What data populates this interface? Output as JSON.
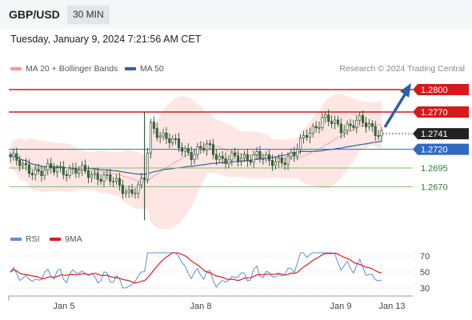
{
  "header": {
    "symbol": "GBP/USD",
    "interval": "30 MIN"
  },
  "datetime": "Tuesday, January 9, 2024 7:21:56 AM CET",
  "copyright": "Research © 2024 Trading Central",
  "legend": {
    "bollinger": "MA 20 + Bollinger Bands",
    "ma50": "MA 50",
    "rsi": "RSI",
    "ma9": "9MA"
  },
  "colors": {
    "resistance": "#d7191c",
    "support": "#7fbf6a",
    "current": "#222222",
    "pivot": "#2f6ac0",
    "candle_up": "#ffffff",
    "candle_down": "#2e7d32",
    "bollinger_fill": "#fde3e1",
    "ma20": "#f3a7a0",
    "ma50": "#3a5d9c",
    "rsi": "#5b8fe0",
    "ma9": "#e21b1b",
    "arrow": "#2b5ea8"
  },
  "chart_data": {
    "type": "candlestick",
    "ylim": [
      1.262,
      1.2815
    ],
    "x_labels": [
      "Jan 5",
      "Jan 8",
      "Jan 9",
      "Jan 13"
    ],
    "price_levels": [
      {
        "label": "1.2800",
        "value": 1.28,
        "kind": "resistance"
      },
      {
        "label": "1.2770",
        "value": 1.277,
        "kind": "resistance"
      },
      {
        "label": "1.2741",
        "value": 1.2741,
        "kind": "current"
      },
      {
        "label": "1.2720",
        "value": 1.272,
        "kind": "pivot"
      },
      {
        "label": "1.2695",
        "value": 1.2695,
        "kind": "support"
      },
      {
        "label": "1.2670",
        "value": 1.267,
        "kind": "support"
      }
    ],
    "rsi": {
      "ticks": [
        70,
        50,
        30
      ],
      "ylim": [
        25,
        80
      ]
    }
  }
}
